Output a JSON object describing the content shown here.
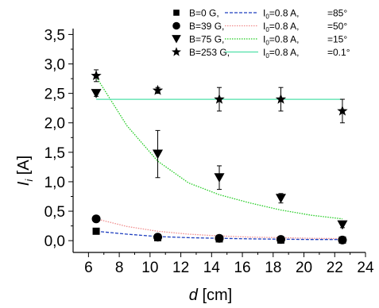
{
  "chart_data": {
    "type": "scatter",
    "x_axis": {
      "label_main": "d",
      "label_unit": " [cm]",
      "range": [
        5,
        24
      ],
      "ticks": [
        "6",
        "8",
        "10",
        "12",
        "14",
        "16",
        "18",
        "20",
        "22",
        "24"
      ]
    },
    "y_axis": {
      "label_main": "I",
      "label_sub": "i",
      "label_unit": " [A]",
      "range": [
        -0.2,
        3.6
      ],
      "ticks": [
        "0,0",
        "0,5",
        "1,0",
        "1,5",
        "2,0",
        "2,5",
        "3,0",
        "3,5"
      ]
    },
    "grid": false,
    "legend_position": "top-right",
    "series": [
      {
        "name": "B=0 G,",
        "marker": "square",
        "points": [
          {
            "x": 6.5,
            "y": 0.16
          },
          {
            "x": 10.5,
            "y": 0.05
          },
          {
            "x": 14.5,
            "y": 0.03
          },
          {
            "x": 18.5,
            "y": 0.01
          },
          {
            "x": 22.5,
            "y": 0.01
          }
        ],
        "fit": {
          "line_style": "dashed",
          "color": "#1f3fbf",
          "points": [
            [
              6.5,
              0.16
            ],
            [
              8.5,
              0.11
            ],
            [
              10.5,
              0.07
            ],
            [
              12.5,
              0.05
            ],
            [
              14.5,
              0.04
            ],
            [
              16.5,
              0.03
            ],
            [
              18.5,
              0.025
            ],
            [
              20.5,
              0.02
            ],
            [
              22.5,
              0.02
            ]
          ],
          "i0": "=0.8 A,",
          "angle": "=85°"
        }
      },
      {
        "name": "B=39 G,",
        "marker": "circle",
        "points": [
          {
            "x": 6.5,
            "y": 0.37
          },
          {
            "x": 10.5,
            "y": 0.06
          },
          {
            "x": 14.5,
            "y": 0.04
          },
          {
            "x": 18.5,
            "y": 0.02
          },
          {
            "x": 22.5,
            "y": 0.01
          }
        ],
        "fit": {
          "line_style": "dotted",
          "color": "#f08c8c",
          "points": [
            [
              6.5,
              0.37
            ],
            [
              8.5,
              0.24
            ],
            [
              10.5,
              0.16
            ],
            [
              12.5,
              0.11
            ],
            [
              14.5,
              0.08
            ],
            [
              16.5,
              0.06
            ],
            [
              18.5,
              0.05
            ],
            [
              20.5,
              0.04
            ],
            [
              22.5,
              0.035
            ]
          ],
          "i0": "=0.8 A,",
          "angle": "=50°"
        }
      },
      {
        "name": "B=75 G,",
        "marker": "triangle-down",
        "points": [
          {
            "x": 6.5,
            "y": 2.5,
            "err": 0.05
          },
          {
            "x": 10.5,
            "y": 1.47,
            "err": 0.4
          },
          {
            "x": 14.5,
            "y": 1.07,
            "err": 0.2
          },
          {
            "x": 18.5,
            "y": 0.72,
            "err": 0.08
          },
          {
            "x": 22.5,
            "y": 0.27,
            "err": 0.05
          }
        ],
        "fit": {
          "line_style": "dotted",
          "color": "#22cc22",
          "points": [
            [
              6.5,
              2.78
            ],
            [
              8.5,
              1.95
            ],
            [
              10.5,
              1.35
            ],
            [
              12.5,
              0.98
            ],
            [
              14.5,
              0.78
            ],
            [
              16.5,
              0.64
            ],
            [
              18.5,
              0.52
            ],
            [
              20.5,
              0.43
            ],
            [
              22.5,
              0.37
            ]
          ],
          "i0": "=0.8 A,",
          "angle": "=15°"
        }
      },
      {
        "name": "B=253 G,",
        "marker": "star",
        "points": [
          {
            "x": 6.5,
            "y": 2.8,
            "err": 0.1
          },
          {
            "x": 10.5,
            "y": 2.55,
            "err": 0.05
          },
          {
            "x": 14.5,
            "y": 2.4,
            "err": 0.2
          },
          {
            "x": 18.5,
            "y": 2.4,
            "err": 0.2
          },
          {
            "x": 22.5,
            "y": 2.2,
            "err": 0.2
          }
        ],
        "fit": {
          "line_style": "solid",
          "color": "#4fe0a8",
          "points": [
            [
              6.5,
              2.4
            ],
            [
              22.5,
              2.4
            ]
          ],
          "i0": "=0.8 A,",
          "angle": "=0.1°"
        }
      }
    ],
    "legend_i0_label": "I",
    "legend_i0_sub": "0"
  }
}
